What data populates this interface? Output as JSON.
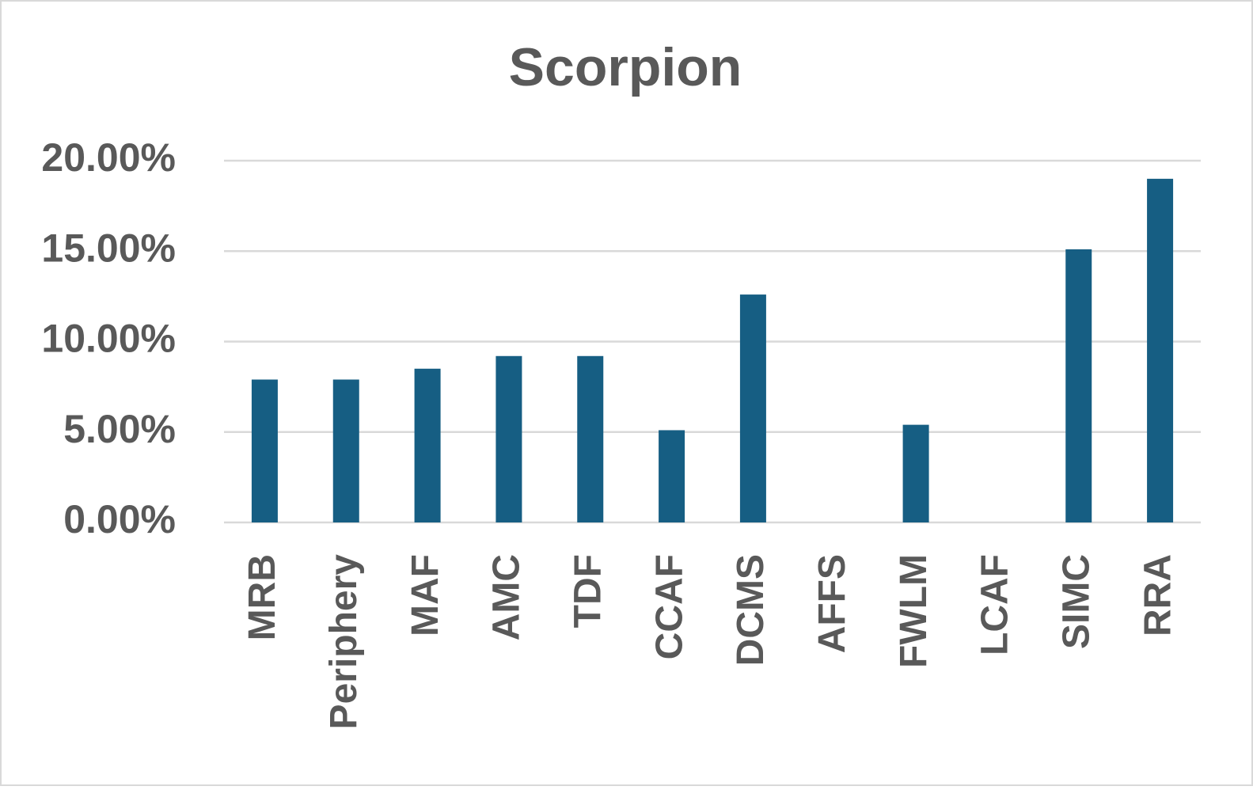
{
  "chart_data": {
    "type": "bar",
    "title": "Scorpion",
    "categories": [
      "MRB",
      "Periphery",
      "MAF",
      "AMC",
      "TDF",
      "CCAF",
      "DCMS",
      "AFFS",
      "FWLM",
      "LCAF",
      "SIMC",
      "RRA"
    ],
    "values": [
      7.9,
      7.9,
      8.5,
      9.2,
      9.2,
      5.1,
      12.6,
      0,
      5.4,
      0,
      15.1,
      19.0
    ],
    "color": "#165e83",
    "ylim": [
      0,
      20
    ],
    "yticks": [
      {
        "value": 0,
        "label": "0.00%"
      },
      {
        "value": 5,
        "label": "5.00%"
      },
      {
        "value": 10,
        "label": "10.00%"
      },
      {
        "value": 15,
        "label": "15.00%"
      },
      {
        "value": 20,
        "label": "20.00%"
      }
    ],
    "grid": true
  }
}
